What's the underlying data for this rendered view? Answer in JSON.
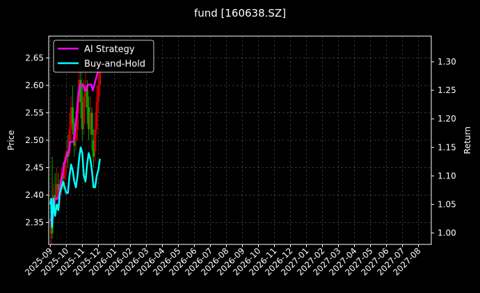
{
  "title": "fund [160638.SZ]",
  "y_left_label": "Price",
  "y_right_label": "Return",
  "legend": [
    {
      "name": "AI Strategy",
      "color": "#ff00ff"
    },
    {
      "name": "Buy-and-Hold",
      "color": "#00ffff"
    }
  ],
  "chart_data": {
    "type": "line",
    "title": "fund [160638.SZ]",
    "ylabel": "Price",
    "ylabel_right": "Return",
    "ylim": [
      2.31,
      2.69
    ],
    "ylim_right": [
      0.98,
      1.345
    ],
    "y_ticks": [
      2.35,
      2.4,
      2.45,
      2.5,
      2.55,
      2.6,
      2.65
    ],
    "y_right_ticks": [
      1.0,
      1.05,
      1.1,
      1.15,
      1.2,
      1.25,
      1.3
    ],
    "x_ticks": [
      "2025-09",
      "2025-10",
      "2025-11",
      "2025-12",
      "2026-01",
      "2026-02",
      "2026-03",
      "2026-04",
      "2026-05",
      "2026-06",
      "2026-07",
      "2026-08",
      "2026-09",
      "2026-10",
      "2026-11",
      "2026-12",
      "2027-01",
      "2027-02",
      "2027-03",
      "2027-04",
      "2027-05",
      "2027-06",
      "2027-07",
      "2027-08"
    ],
    "x_range_months": [
      -0.1,
      23.8
    ],
    "grid": true,
    "legend_position": "upper-left",
    "candles": [
      {
        "m": 0.05,
        "o": 2.35,
        "c": 2.33,
        "h": 2.37,
        "l": 2.31,
        "col": "#cc0000"
      },
      {
        "m": 0.12,
        "o": 2.33,
        "c": 2.36,
        "h": 2.47,
        "l": 2.32,
        "col": "#00aa00"
      },
      {
        "m": 0.2,
        "o": 2.38,
        "c": 2.4,
        "h": 2.42,
        "l": 2.36,
        "col": "#cc0000"
      },
      {
        "m": 0.3,
        "o": 2.4,
        "c": 2.39,
        "h": 2.44,
        "l": 2.37,
        "col": "#00aa00"
      },
      {
        "m": 0.4,
        "o": 2.4,
        "c": 2.42,
        "h": 2.45,
        "l": 2.39,
        "col": "#cc0000"
      },
      {
        "m": 0.5,
        "o": 2.42,
        "c": 2.41,
        "h": 2.44,
        "l": 2.4,
        "col": "#00aa00"
      },
      {
        "m": 0.6,
        "o": 2.4,
        "c": 2.42,
        "h": 2.43,
        "l": 2.38,
        "col": "#cc0000"
      },
      {
        "m": 0.7,
        "o": 2.42,
        "c": 2.44,
        "h": 2.45,
        "l": 2.4,
        "col": "#cc0000"
      },
      {
        "m": 0.8,
        "o": 2.44,
        "c": 2.43,
        "h": 2.46,
        "l": 2.41,
        "col": "#00aa00"
      },
      {
        "m": 0.9,
        "o": 2.43,
        "c": 2.46,
        "h": 2.47,
        "l": 2.42,
        "col": "#cc0000"
      },
      {
        "m": 1.0,
        "o": 2.46,
        "c": 2.48,
        "h": 2.5,
        "l": 2.44,
        "col": "#cc0000"
      },
      {
        "m": 1.1,
        "o": 2.48,
        "c": 2.47,
        "h": 2.51,
        "l": 2.45,
        "col": "#00aa00"
      },
      {
        "m": 1.2,
        "o": 2.48,
        "c": 2.52,
        "h": 2.55,
        "l": 2.47,
        "col": "#cc0000"
      },
      {
        "m": 1.3,
        "o": 2.52,
        "c": 2.56,
        "h": 2.58,
        "l": 2.5,
        "col": "#cc0000"
      },
      {
        "m": 1.4,
        "o": 2.56,
        "c": 2.53,
        "h": 2.6,
        "l": 2.51,
        "col": "#00aa00"
      },
      {
        "m": 1.5,
        "o": 2.53,
        "c": 2.49,
        "h": 2.54,
        "l": 2.47,
        "col": "#00aa00"
      },
      {
        "m": 1.6,
        "o": 2.5,
        "c": 2.52,
        "h": 2.54,
        "l": 2.48,
        "col": "#cc0000"
      },
      {
        "m": 1.7,
        "o": 2.52,
        "c": 2.57,
        "h": 2.59,
        "l": 2.5,
        "col": "#cc0000"
      },
      {
        "m": 1.8,
        "o": 2.57,
        "c": 2.61,
        "h": 2.63,
        "l": 2.55,
        "col": "#cc0000"
      },
      {
        "m": 1.9,
        "o": 2.61,
        "c": 2.57,
        "h": 2.66,
        "l": 2.54,
        "col": "#00aa00"
      },
      {
        "m": 2.0,
        "o": 2.57,
        "c": 2.52,
        "h": 2.6,
        "l": 2.5,
        "col": "#00aa00"
      },
      {
        "m": 2.1,
        "o": 2.53,
        "c": 2.58,
        "h": 2.61,
        "l": 2.51,
        "col": "#cc0000"
      },
      {
        "m": 2.2,
        "o": 2.58,
        "c": 2.6,
        "h": 2.63,
        "l": 2.56,
        "col": "#cc0000"
      },
      {
        "m": 2.3,
        "o": 2.6,
        "c": 2.56,
        "h": 2.61,
        "l": 2.53,
        "col": "#00aa00"
      },
      {
        "m": 2.4,
        "o": 2.56,
        "c": 2.52,
        "h": 2.58,
        "l": 2.5,
        "col": "#00aa00"
      },
      {
        "m": 2.5,
        "o": 2.52,
        "c": 2.55,
        "h": 2.58,
        "l": 2.51,
        "col": "#cc0000"
      },
      {
        "m": 2.6,
        "o": 2.55,
        "c": 2.51,
        "h": 2.56,
        "l": 2.48,
        "col": "#00aa00"
      },
      {
        "m": 2.7,
        "o": 2.5,
        "c": 2.47,
        "h": 2.52,
        "l": 2.45,
        "col": "#00aa00"
      },
      {
        "m": 2.8,
        "o": 2.48,
        "c": 2.52,
        "h": 2.55,
        "l": 2.46,
        "col": "#cc0000"
      },
      {
        "m": 2.9,
        "o": 2.52,
        "c": 2.57,
        "h": 2.6,
        "l": 2.51,
        "col": "#cc0000"
      },
      {
        "m": 3.0,
        "o": 2.57,
        "c": 2.6,
        "h": 2.62,
        "l": 2.55,
        "col": "#cc0000"
      },
      {
        "m": 3.1,
        "o": 2.6,
        "c": 2.63,
        "h": 2.66,
        "l": 2.58,
        "col": "#cc0000"
      }
    ],
    "series": [
      {
        "name": "AI Strategy",
        "color": "#ff00ff",
        "axis": "right",
        "x": [
          0.0,
          0.1,
          0.2,
          0.3,
          0.35,
          0.45,
          0.55,
          0.65,
          0.75,
          0.85,
          0.95,
          1.05,
          1.15,
          1.25,
          1.35,
          1.45,
          1.55,
          1.65,
          1.75,
          1.85,
          1.95,
          2.05,
          2.15,
          2.25,
          2.35,
          2.45,
          2.55,
          2.65,
          2.75,
          2.85,
          2.95,
          3.05,
          3.1
        ],
        "y": [
          1.02,
          1.03,
          1.04,
          1.06,
          1.06,
          1.06,
          1.07,
          1.09,
          1.1,
          1.12,
          1.13,
          1.14,
          1.14,
          1.16,
          1.16,
          1.16,
          1.18,
          1.21,
          1.24,
          1.26,
          1.26,
          1.26,
          1.25,
          1.25,
          1.26,
          1.26,
          1.26,
          1.25,
          1.26,
          1.27,
          1.28,
          1.29,
          1.3
        ]
      },
      {
        "name": "Buy-and-Hold",
        "color": "#00ffff",
        "axis": "right",
        "x": [
          0.0,
          0.05,
          0.1,
          0.15,
          0.2,
          0.25,
          0.3,
          0.4,
          0.5,
          0.6,
          0.7,
          0.8,
          0.9,
          1.0,
          1.1,
          1.2,
          1.3,
          1.4,
          1.5,
          1.6,
          1.7,
          1.8,
          1.9,
          2.0,
          2.1,
          2.2,
          2.3,
          2.4,
          2.5,
          2.6,
          2.7,
          2.8,
          2.9,
          3.0,
          3.1
        ],
        "y": [
          1.05,
          1.06,
          1.01,
          1.03,
          1.06,
          1.04,
          1.03,
          1.05,
          1.04,
          1.07,
          1.08,
          1.09,
          1.08,
          1.07,
          1.07,
          1.1,
          1.12,
          1.11,
          1.09,
          1.08,
          1.1,
          1.13,
          1.15,
          1.14,
          1.1,
          1.09,
          1.12,
          1.14,
          1.13,
          1.11,
          1.08,
          1.08,
          1.1,
          1.11,
          1.13
        ]
      }
    ]
  }
}
